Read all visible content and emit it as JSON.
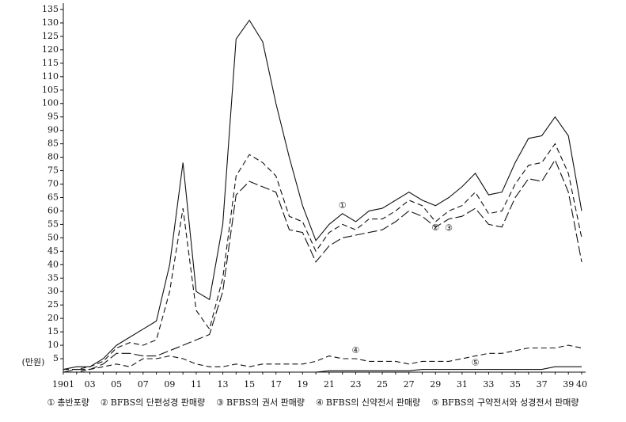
{
  "chart_data": {
    "type": "line",
    "y_label": "(만원)",
    "categories": [
      "1901",
      null,
      "03",
      null,
      "05",
      null,
      "07",
      null,
      "09",
      null,
      "11",
      null,
      "13",
      null,
      "15",
      null,
      "17",
      null,
      "19",
      null,
      "21",
      null,
      "23",
      null,
      "25",
      null,
      "27",
      null,
      "29",
      null,
      "31",
      null,
      "33",
      null,
      "35",
      null,
      "37",
      null,
      "39",
      "40"
    ],
    "ylim": [
      0,
      135
    ],
    "yticks": [
      5,
      10,
      15,
      20,
      25,
      30,
      35,
      40,
      45,
      50,
      55,
      60,
      65,
      70,
      75,
      80,
      85,
      90,
      95,
      100,
      105,
      110,
      115,
      120,
      125,
      130,
      135
    ],
    "series": [
      {
        "symbol": "①",
        "name": "총반포량",
        "color": "#111111",
        "dash": "solid",
        "values": [
          1,
          2,
          2,
          5,
          10,
          13,
          16,
          19,
          40,
          78,
          30,
          27,
          55,
          124,
          131,
          123,
          100,
          80,
          62,
          49,
          55,
          59,
          56,
          60,
          61,
          64,
          67,
          64,
          62,
          65,
          69,
          74,
          66,
          67,
          78,
          87,
          88,
          95,
          88,
          60
        ]
      },
      {
        "symbol": "②",
        "name": "BFBS의 단편성경 판매량",
        "color": "#111111",
        "dash": "dashed",
        "values": [
          1,
          1,
          2,
          4,
          9,
          11,
          10,
          12,
          30,
          61,
          23,
          16,
          35,
          73,
          81,
          78,
          73,
          58,
          56,
          45,
          52,
          55,
          53,
          57,
          57,
          60,
          64,
          62,
          56,
          60,
          62,
          67,
          59,
          60,
          70,
          77,
          78,
          85,
          74,
          50
        ]
      },
      {
        "symbol": "③",
        "name": "BFBS의 권서 판매량",
        "color": "#111111",
        "dash": "longdash",
        "values": [
          0,
          1,
          1,
          3,
          7,
          7,
          6,
          6,
          8,
          10,
          12,
          14,
          30,
          66,
          71,
          69,
          67,
          53,
          52,
          41,
          47,
          50,
          51,
          52,
          53,
          56,
          60,
          58,
          54,
          57,
          58,
          61,
          55,
          54,
          65,
          72,
          71,
          79,
          67,
          41
        ]
      },
      {
        "symbol": "④",
        "name": "BFBS의 신약전서 판매량",
        "color": "#111111",
        "dash": "dashed",
        "values": [
          0,
          0,
          1,
          2,
          3,
          2,
          5,
          5,
          6,
          5,
          3,
          2,
          2,
          3,
          2,
          3,
          3,
          3,
          3,
          4,
          6,
          5,
          5,
          4,
          4,
          4,
          3,
          4,
          4,
          4,
          5,
          6,
          7,
          7,
          8,
          9,
          9,
          9,
          10,
          9
        ]
      },
      {
        "symbol": "⑤",
        "name": "BFBS의 구약전서와 성경전서 판매량",
        "color": "#111111",
        "dash": "solid",
        "values": [
          0,
          0,
          0,
          0,
          0,
          0,
          0,
          0,
          0,
          0,
          0,
          0,
          0,
          0,
          0,
          0,
          0,
          0,
          0,
          0,
          0.5,
          0.5,
          0.5,
          0.5,
          0.5,
          0.5,
          0.5,
          1,
          1,
          1,
          1,
          1,
          1,
          1,
          1,
          1,
          1,
          2,
          2,
          2
        ]
      }
    ]
  }
}
